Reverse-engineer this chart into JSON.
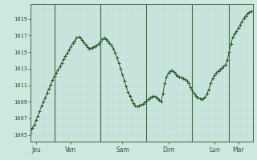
{
  "background_color": "#cce8e0",
  "plot_bg_color": "#cce8e0",
  "line_color": "#2d5a2d",
  "marker_color": "#2d5a2d",
  "grid_color_minor": "#b8d8d0",
  "grid_color_major": "#a0c8be",
  "day_line_color": "#3d6a3d",
  "tick_label_color": "#2d5a2d",
  "ylabel_values": [
    1005,
    1007,
    1009,
    1011,
    1013,
    1015,
    1017,
    1019
  ],
  "xlim": [
    0,
    121
  ],
  "ylim": [
    1004.2,
    1020.8
  ],
  "x_tick_labels": [
    "Jeu",
    "Ven",
    "Sam",
    "Dim",
    "Lun",
    "Mar"
  ],
  "x_tick_positions": [
    3,
    22,
    50,
    75,
    100,
    113
  ],
  "x_day_lines": [
    13,
    38,
    63,
    88,
    108
  ],
  "data_y": [
    1005.3,
    1005.8,
    1006.2,
    1006.8,
    1007.3,
    1007.9,
    1008.5,
    1009.0,
    1009.5,
    1010.1,
    1010.6,
    1011.1,
    1011.6,
    1012.1,
    1012.5,
    1012.9,
    1013.3,
    1013.7,
    1014.1,
    1014.5,
    1014.9,
    1015.3,
    1015.7,
    1016.1,
    1016.4,
    1016.7,
    1016.8,
    1016.7,
    1016.5,
    1016.2,
    1015.9,
    1015.6,
    1015.4,
    1015.5,
    1015.6,
    1015.7,
    1015.8,
    1016.0,
    1016.3,
    1016.6,
    1016.7,
    1016.6,
    1016.4,
    1016.1,
    1015.8,
    1015.4,
    1014.9,
    1014.3,
    1013.7,
    1013.0,
    1012.3,
    1011.5,
    1010.9,
    1010.2,
    1009.7,
    1009.2,
    1008.8,
    1008.5,
    1008.4,
    1008.5,
    1008.6,
    1008.7,
    1008.9,
    1009.1,
    1009.3,
    1009.5,
    1009.6,
    1009.7,
    1009.6,
    1009.4,
    1009.2,
    1009.0,
    1010.0,
    1011.2,
    1012.0,
    1012.5,
    1012.7,
    1012.8,
    1012.6,
    1012.3,
    1012.1,
    1012.0,
    1011.9,
    1011.8,
    1011.7,
    1011.5,
    1011.2,
    1010.8,
    1010.4,
    1010.0,
    1009.7,
    1009.5,
    1009.4,
    1009.3,
    1009.4,
    1009.6,
    1010.0,
    1010.5,
    1011.2,
    1011.8,
    1012.2,
    1012.5,
    1012.7,
    1012.9,
    1013.1,
    1013.3,
    1013.5,
    1014.0,
    1015.0,
    1016.0,
    1016.8,
    1017.2,
    1017.5,
    1017.9,
    1018.3,
    1018.7,
    1019.1,
    1019.4,
    1019.6,
    1019.8,
    1019.9
  ]
}
